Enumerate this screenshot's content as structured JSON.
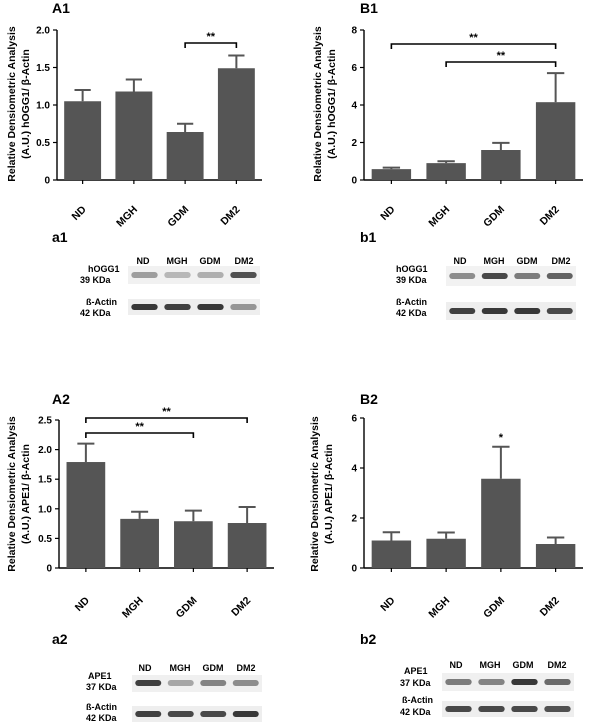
{
  "figure_colors": {
    "bar": "#555555",
    "axis": "#000000"
  },
  "chart_data": [
    {
      "id": "A1",
      "type": "bar",
      "panel_label": "A1",
      "ylabel_line1": "Relative Densiometric Analysis",
      "ylabel_line2": "(A.U.) hOGG1/ β-Actin",
      "categories": [
        "ND",
        "MGH",
        "GDM",
        "DM2"
      ],
      "values": [
        1.05,
        1.18,
        0.64,
        1.49
      ],
      "errors": [
        0.15,
        0.16,
        0.11,
        0.17
      ],
      "ylim": [
        0,
        2.0
      ],
      "yticks": [
        0,
        0.5,
        1.0,
        1.5,
        2.0
      ],
      "ytick_labels": [
        "0",
        "0.5",
        "1.0",
        "1.5",
        "2.0"
      ],
      "significance": [
        {
          "from": 2,
          "to": 3,
          "label": "**"
        }
      ]
    },
    {
      "id": "B1",
      "type": "bar",
      "panel_label": "B1",
      "ylabel_line1": "Relative Densiometric Analysis",
      "ylabel_line2": "(A.U.) hOGG1/ β-Actin",
      "categories": [
        "ND",
        "MGH",
        "GDM",
        "DM2"
      ],
      "values": [
        0.58,
        0.9,
        1.6,
        4.15
      ],
      "errors": [
        0.08,
        0.1,
        0.38,
        1.55
      ],
      "ylim": [
        0,
        8
      ],
      "yticks": [
        0,
        2,
        4,
        6,
        8
      ],
      "ytick_labels": [
        "0",
        "2",
        "4",
        "6",
        "8"
      ],
      "significance": [
        {
          "from": 0,
          "to": 3,
          "label": "**"
        },
        {
          "from": 1,
          "to": 3,
          "label": "**"
        }
      ]
    },
    {
      "id": "A2",
      "type": "bar",
      "panel_label": "A2",
      "ylabel_line1": "Relative Densiometric Analysis",
      "ylabel_line2": "(A.U.) APE1/ β-Actin",
      "categories": [
        "ND",
        "MGH",
        "GDM",
        "DM2"
      ],
      "values": [
        1.79,
        0.83,
        0.79,
        0.76
      ],
      "errors": [
        0.31,
        0.12,
        0.18,
        0.27
      ],
      "ylim": [
        0,
        2.5
      ],
      "yticks": [
        0,
        0.5,
        1.0,
        1.5,
        2.0,
        2.5
      ],
      "ytick_labels": [
        "0",
        "0.5",
        "1.0",
        "1.5",
        "2.0",
        "2.5"
      ],
      "significance": [
        {
          "from": 0,
          "to": 3,
          "label": "**"
        },
        {
          "from": 0,
          "to": 2,
          "label": "**"
        }
      ]
    },
    {
      "id": "B2",
      "type": "bar",
      "panel_label": "B2",
      "ylabel_line1": "Relative Densiometric Analysis",
      "ylabel_line2": "(A.U.) APE1/ β-Actin",
      "categories": [
        "ND",
        "MGH",
        "GDM",
        "DM2"
      ],
      "values": [
        1.1,
        1.17,
        3.57,
        0.96
      ],
      "errors": [
        0.33,
        0.25,
        1.28,
        0.26
      ],
      "ylim": [
        0,
        6
      ],
      "yticks": [
        0,
        2,
        4,
        6
      ],
      "ytick_labels": [
        "0",
        "2",
        "4",
        "6"
      ],
      "significance": [
        {
          "from": 2,
          "to": 2,
          "label": "*"
        }
      ]
    }
  ],
  "blots": [
    {
      "id": "a1",
      "panel_label": "a1",
      "lanes": [
        "ND",
        "MGH",
        "GDM",
        "DM2"
      ],
      "protein_label": "hOGG1",
      "protein_size": "39 KDa",
      "control_label": "ß-Actin",
      "control_size": "42 KDa",
      "protein_intensity": [
        0.25,
        0.1,
        0.15,
        0.7
      ],
      "control_intensity": [
        0.85,
        0.8,
        0.85,
        0.3
      ]
    },
    {
      "id": "b1",
      "panel_label": "b1",
      "lanes": [
        "ND",
        "MGH",
        "GDM",
        "DM2"
      ],
      "protein_label": "hOGG1",
      "protein_size": "39 KDa",
      "control_label": "ß-Actin",
      "control_size": "42 KDa",
      "protein_intensity": [
        0.35,
        0.75,
        0.45,
        0.6
      ],
      "control_intensity": [
        0.8,
        0.85,
        0.85,
        0.75
      ]
    },
    {
      "id": "a2",
      "panel_label": "a2",
      "lanes": [
        "ND",
        "MGH",
        "GDM",
        "DM2"
      ],
      "protein_label": "APE1",
      "protein_size": "37 KDa",
      "control_label": "ß-Actin",
      "control_size": "42 KDa",
      "protein_intensity": [
        0.8,
        0.2,
        0.4,
        0.35
      ],
      "control_intensity": [
        0.8,
        0.75,
        0.75,
        0.85
      ]
    },
    {
      "id": "b2",
      "panel_label": "b2",
      "lanes": [
        "ND",
        "MGH",
        "GDM",
        "DM2"
      ],
      "protein_label": "APE1",
      "protein_size": "37 KDa",
      "control_label": "ß-Actin",
      "control_size": "42 KDa",
      "protein_intensity": [
        0.45,
        0.4,
        0.85,
        0.55
      ],
      "control_intensity": [
        0.75,
        0.75,
        0.75,
        0.7
      ]
    }
  ]
}
